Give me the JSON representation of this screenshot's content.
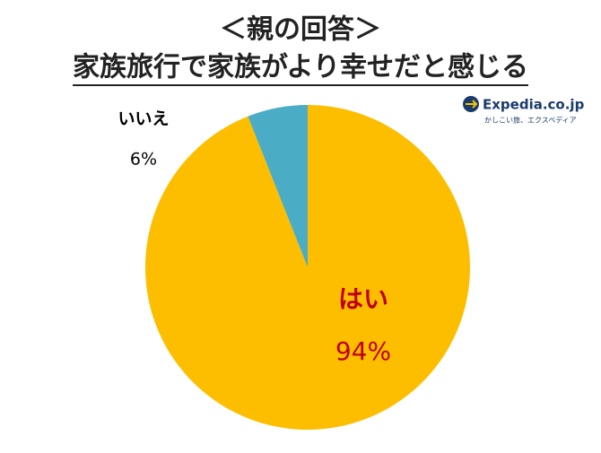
{
  "chart_data": {
    "type": "pie",
    "title": "＜親の回答＞",
    "subtitle": "家族旅行で家族がより幸せだと感じる",
    "categories": [
      "はい",
      "いいえ"
    ],
    "values": [
      94,
      6
    ],
    "value_labels": [
      "94%",
      "6%"
    ],
    "colors": [
      "#FDBE00",
      "#4BACC6"
    ],
    "label_colors": [
      "#C00000",
      "#000000"
    ]
  },
  "logo": {
    "name": "Expedia.co.jp",
    "tagline": "かしこい旅、エクスペディア"
  }
}
